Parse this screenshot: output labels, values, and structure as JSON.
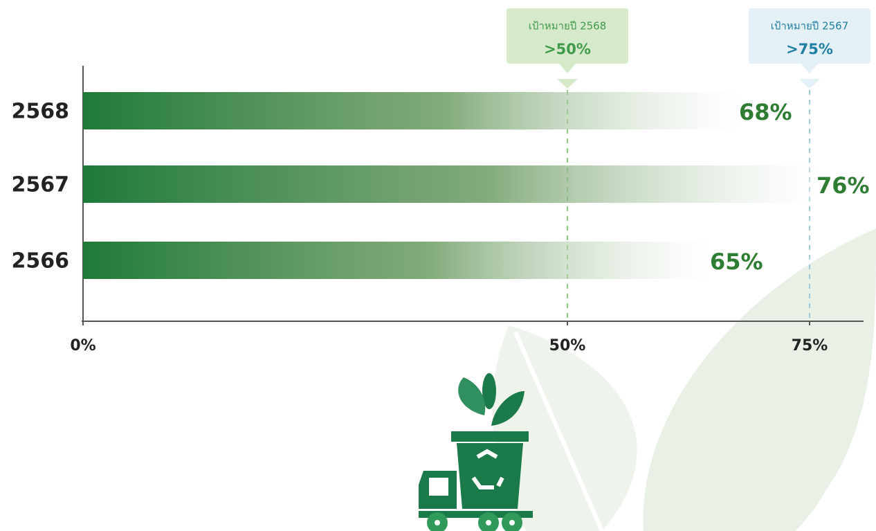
{
  "chart_data": {
    "type": "bar",
    "orientation": "horizontal",
    "categories": [
      "2568",
      "2567",
      "2566"
    ],
    "values": [
      68,
      76,
      65
    ],
    "value_labels": [
      "68%",
      "76%",
      "65%"
    ],
    "color": "#1e7a3a",
    "xlim": [
      0,
      80
    ],
    "xticks": [
      {
        "value": 0,
        "label": "0%"
      },
      {
        "value": 50,
        "label": "50%"
      },
      {
        "value": 75,
        "label": "75%"
      }
    ],
    "targets": [
      {
        "label": "เป้าหมายปี 2568",
        "value": 50,
        "value_label": ">50%",
        "color": "#d6eacb",
        "text_color": "#3f9a4a",
        "line_color": "#8fcf7f"
      },
      {
        "label": "เป้าหมายปี 2567",
        "value": 75,
        "value_label": ">75%",
        "color": "#e3f0f6",
        "text_color": "#1f7fa3",
        "line_color": "#9cc9dc"
      }
    ]
  }
}
